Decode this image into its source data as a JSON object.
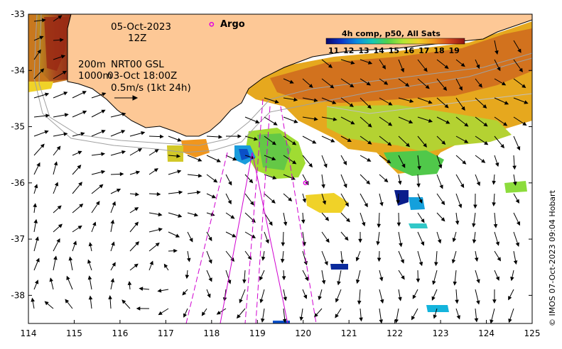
{
  "map": {
    "date_label": "05-Oct-2023",
    "time_label": "12Z",
    "depth_label_1": "200m",
    "depth_label_2": "1000m",
    "product_label": "NRT00 GSL",
    "product_time_label": "03-Oct 18:00Z",
    "scale_label": "0.5m/s (1kt 24h)",
    "argo_label": "Argo",
    "credit": "© IMOS 07-Oct-2023 09:04 Hobart",
    "x_ticks": [
      "114",
      "115",
      "116",
      "117",
      "118",
      "119",
      "120",
      "121",
      "122",
      "123",
      "124",
      "125"
    ],
    "y_ticks": [
      "-33",
      "-34",
      "-35",
      "-36",
      "-37",
      "-38"
    ],
    "lon_range": [
      114,
      125
    ],
    "lat_range": [
      -38.5,
      -33
    ],
    "argo_floats": [
      {
        "lon": 118.0,
        "lat": -33.18
      },
      {
        "lon": 120.05,
        "lat": -36.0
      }
    ],
    "colors": {
      "land": "#fdc896",
      "argo": "#e000e0",
      "swath": "#d000d0",
      "coast": "#000000",
      "isobath": "#a0a0a0"
    }
  },
  "colorbar": {
    "title": "4h comp, p50, All Sats",
    "ticks": [
      "11",
      "12",
      "13",
      "14",
      "15",
      "16",
      "17",
      "18",
      "19"
    ],
    "range": [
      10.5,
      19.7
    ],
    "stops": [
      "#08086b",
      "#0a34c8",
      "#0a8ce0",
      "#14c8b4",
      "#50d24a",
      "#b4e632",
      "#f0d228",
      "#f0961e",
      "#d2461e",
      "#8c1414"
    ]
  }
}
